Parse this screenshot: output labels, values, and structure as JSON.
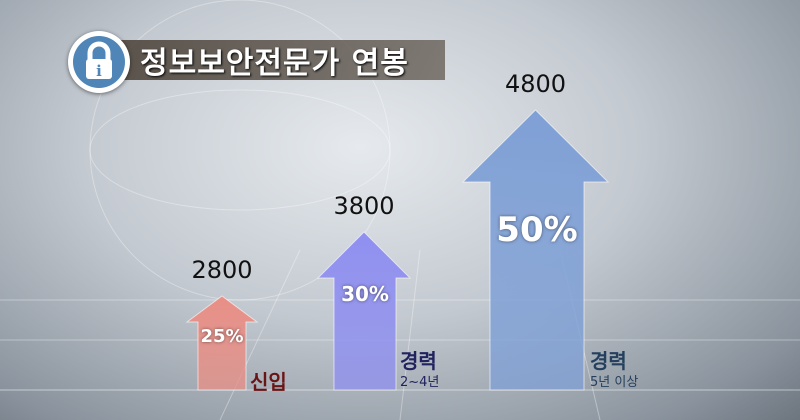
{
  "header": {
    "title": "정보보안전문가 연봉",
    "icon": "lock-info-icon"
  },
  "chart_data": {
    "type": "bar",
    "title": "정보보안전문가 연봉",
    "categories": [
      {
        "label": "신입",
        "sublabel": ""
      },
      {
        "label": "경력",
        "sublabel": "2~4년"
      },
      {
        "label": "경력",
        "sublabel": "5년 이상"
      }
    ],
    "values": [
      2800,
      3800,
      4800
    ],
    "percent_labels": [
      "25%",
      "30%",
      "50%"
    ],
    "value_labels": [
      "2800",
      "3800",
      "4800"
    ],
    "colors": [
      "#e88f86",
      "#8f8ff0",
      "#7fa0d6"
    ],
    "label_colors": [
      "#6b1414",
      "#22225e",
      "#25405e"
    ],
    "grid": false
  }
}
